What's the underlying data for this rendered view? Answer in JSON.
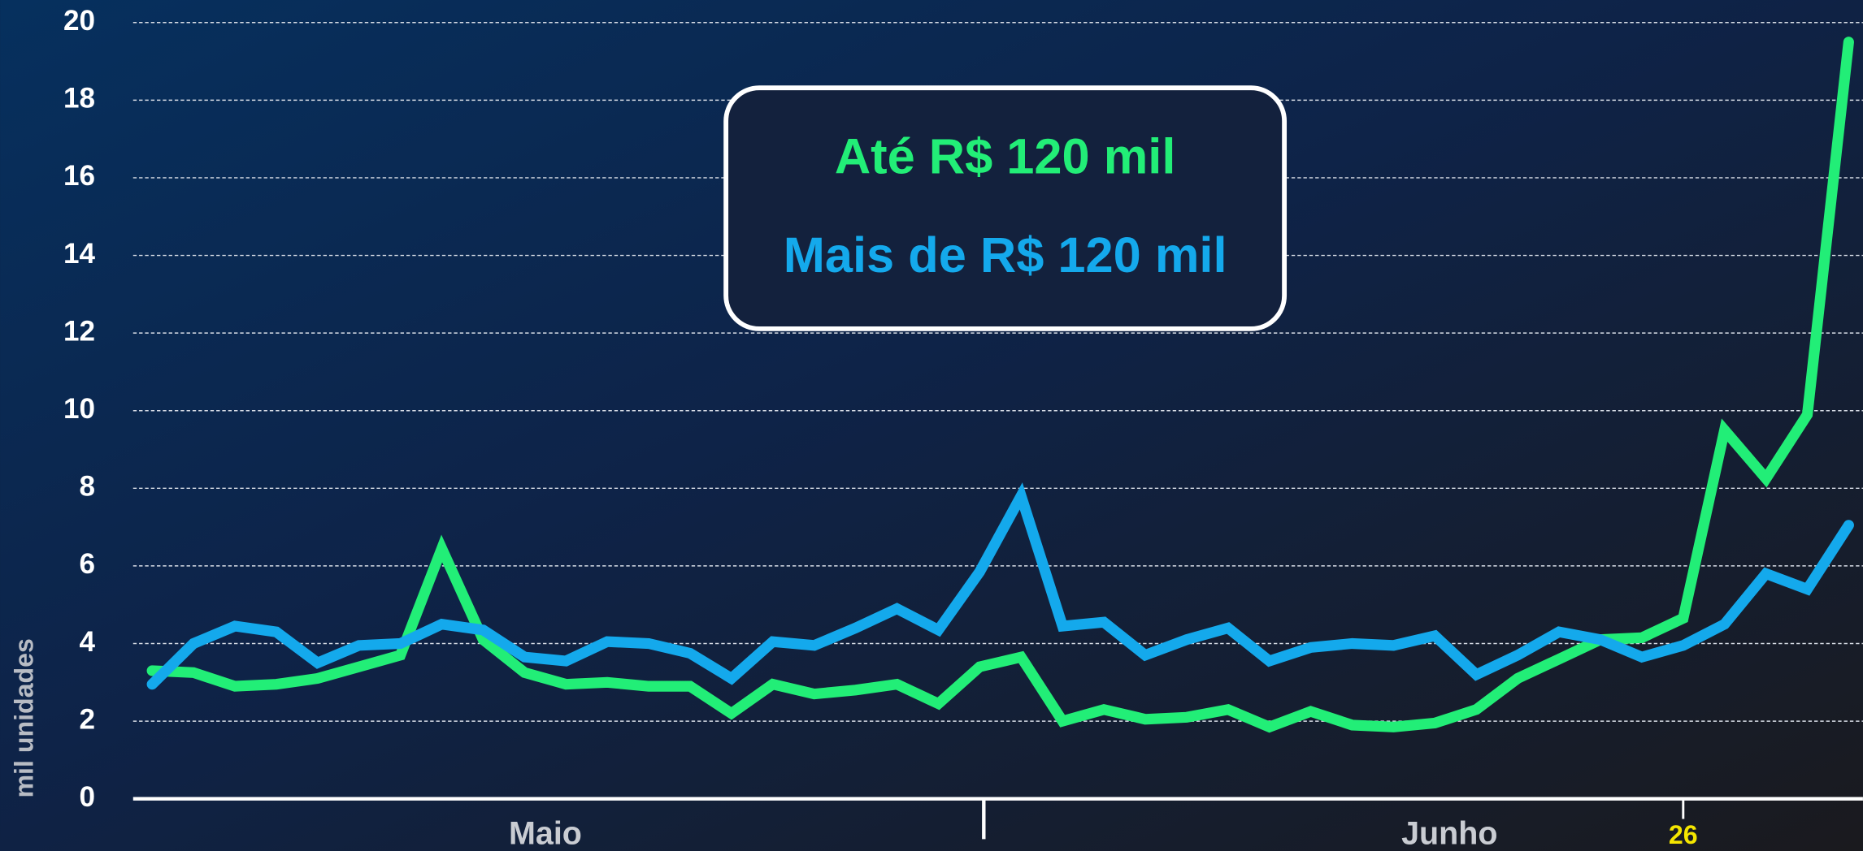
{
  "chart_data": {
    "type": "line",
    "ylabel": "mil unidades",
    "month_labels": [
      "Maio",
      "Junho"
    ],
    "categories": [
      null,
      null,
      null,
      null,
      null,
      null,
      null,
      null,
      null,
      null,
      null,
      null,
      null,
      null,
      null,
      null,
      null,
      null,
      null,
      null,
      null,
      null,
      null,
      null,
      null,
      null,
      null,
      null,
      null,
      null,
      null,
      null,
      null,
      null,
      null,
      null,
      null,
      "26",
      null,
      null,
      null,
      null
    ],
    "series": [
      {
        "name": "Até R$ 120 mil",
        "color": "#22ee77",
        "values": [
          3.3,
          3.25,
          2.9,
          2.95,
          3.1,
          3.4,
          3.7,
          6.45,
          4.1,
          3.25,
          2.95,
          3.0,
          2.9,
          2.9,
          2.2,
          2.95,
          2.7,
          2.8,
          2.95,
          2.45,
          3.4,
          3.65,
          2.0,
          2.3,
          2.05,
          2.1,
          2.3,
          1.85,
          2.25,
          1.9,
          1.85,
          1.95,
          2.3,
          3.1,
          3.6,
          4.1,
          4.15,
          4.65,
          9.5,
          8.25,
          9.9,
          19.5
        ]
      },
      {
        "name": "Mais de R$ 120 mil",
        "color": "#14a9ec",
        "values": [
          2.95,
          4.0,
          4.45,
          4.3,
          3.5,
          3.95,
          4.0,
          4.5,
          4.35,
          3.65,
          3.55,
          4.05,
          4.0,
          3.75,
          3.1,
          4.05,
          3.95,
          4.4,
          4.9,
          4.35,
          5.85,
          7.8,
          4.45,
          4.55,
          3.7,
          4.1,
          4.4,
          3.55,
          3.9,
          4.0,
          3.95,
          4.2,
          3.2,
          3.7,
          4.3,
          4.1,
          3.65,
          3.95,
          4.5,
          5.8,
          5.4,
          7.05
        ]
      }
    ],
    "ylim": [
      0,
      20
    ],
    "yticks": [
      0,
      2,
      4,
      6,
      8,
      10,
      12,
      14,
      16,
      18,
      20
    ],
    "grid": true
  }
}
